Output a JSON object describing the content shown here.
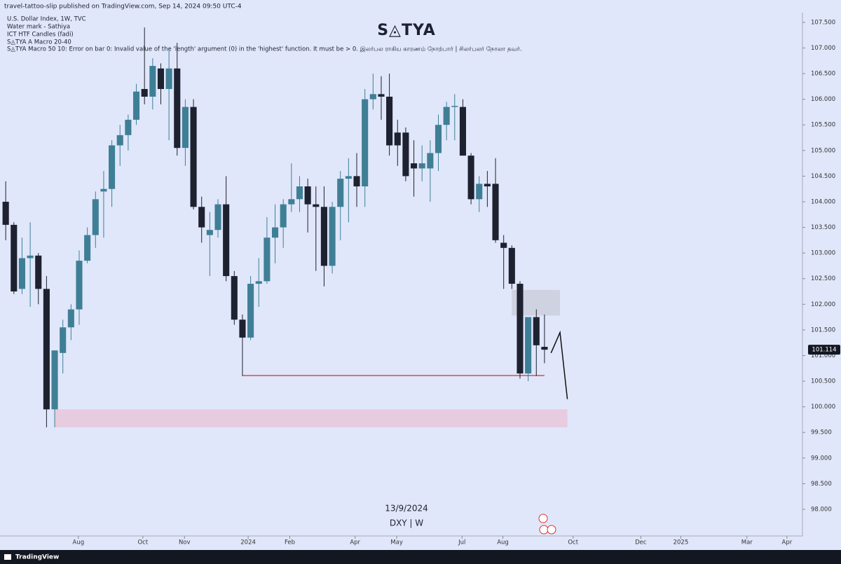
{
  "header": "travel-tattoo-slip published on TradingView.com, Sep 14, 2024 09:50 UTC-4",
  "legend": [
    "U.S. Dollar Index, 1W, TVC",
    "Water mark - Sathiya",
    "ICT HTF Candles (fadi)",
    "S◬TYA A Macro  20-40",
    "S◬TYA  Macro 50 10: Error on bar 0: Invalid value of the 'length' argument (0) in the 'highest' function. It must be > 0.    இலர்பல ராகிய காரணம் நோற்பார் | சிலர்பலர் நோலா தவர்."
  ],
  "footer": "TradingView",
  "chart_data": {
    "type": "candlestick",
    "title": "S◬TYA",
    "watermark": [
      "13/9/2024",
      "DXY | W"
    ],
    "up_color": "#3f7f96",
    "down_color": "#1e2130",
    "categories": [
      null,
      null,
      null,
      null,
      null,
      null,
      null,
      null,
      null,
      null,
      null,
      null,
      null,
      null,
      null,
      null,
      null,
      null,
      null,
      null,
      null,
      null,
      null,
      null,
      null,
      null,
      null,
      null,
      null,
      null,
      null,
      null,
      null,
      null,
      null,
      null,
      null,
      null,
      null,
      null,
      null,
      null,
      null,
      null,
      null,
      null,
      null,
      null,
      null,
      null,
      null,
      null,
      null,
      null,
      null,
      null,
      null,
      null,
      null,
      null,
      null,
      null,
      null,
      null,
      null,
      null,
      null
    ],
    "open": [
      104.0,
      103.55,
      102.3,
      102.9,
      102.95,
      102.3,
      99.95,
      101.05,
      101.55,
      101.9,
      102.85,
      103.35,
      104.2,
      104.25,
      105.1,
      105.3,
      105.6,
      106.2,
      106.05,
      106.6,
      106.2,
      106.6,
      105.05,
      105.85,
      103.9,
      103.35,
      103.45,
      103.95,
      102.55,
      101.7,
      101.35,
      102.4,
      102.45,
      103.3,
      103.5,
      103.95,
      104.05,
      104.3,
      103.95,
      103.9,
      102.75,
      103.9,
      104.45,
      104.5,
      104.3,
      106.0,
      106.1,
      106.05,
      105.35,
      105.35,
      104.75,
      104.65,
      104.65,
      104.95,
      105.5,
      105.85,
      105.85,
      104.9,
      104.05,
      104.35,
      104.35,
      103.2,
      103.1,
      102.4,
      100.65,
      101.75,
      101.17
    ],
    "high": [
      104.4,
      103.6,
      103.3,
      103.6,
      103.0,
      102.55,
      101.1,
      101.7,
      102.0,
      103.05,
      103.5,
      104.2,
      104.6,
      105.2,
      105.5,
      105.7,
      106.3,
      107.4,
      106.8,
      106.7,
      107.0,
      107.1,
      106.0,
      106.0,
      104.1,
      103.8,
      104.05,
      104.5,
      102.65,
      101.8,
      102.55,
      102.9,
      103.7,
      103.95,
      104.05,
      104.75,
      104.5,
      104.45,
      104.3,
      104.3,
      104.0,
      104.6,
      104.85,
      104.95,
      106.2,
      106.5,
      106.45,
      106.5,
      105.6,
      105.45,
      105.2,
      105.1,
      105.2,
      105.7,
      105.95,
      106.1,
      106.0,
      104.95,
      104.5,
      104.6,
      104.85,
      103.35,
      103.15,
      102.45,
      101.75,
      101.9,
      101.8
    ],
    "low": [
      103.25,
      102.2,
      102.2,
      101.95,
      102.0,
      99.6,
      99.6,
      100.65,
      101.3,
      101.6,
      102.8,
      103.1,
      103.3,
      103.9,
      104.7,
      105.0,
      105.5,
      105.9,
      105.8,
      105.9,
      105.2,
      104.9,
      104.7,
      103.85,
      103.2,
      102.55,
      103.3,
      102.45,
      101.6,
      100.6,
      101.3,
      101.95,
      102.4,
      102.8,
      103.1,
      103.8,
      103.8,
      103.4,
      102.65,
      102.35,
      102.6,
      103.25,
      103.6,
      103.9,
      103.9,
      105.8,
      105.6,
      104.9,
      104.7,
      104.4,
      104.1,
      104.4,
      104.0,
      104.6,
      105.2,
      105.2,
      104.9,
      103.95,
      103.8,
      103.9,
      103.2,
      102.3,
      102.3,
      100.55,
      100.5,
      100.6,
      100.85
    ],
    "close": [
      103.55,
      102.25,
      102.9,
      102.95,
      102.3,
      99.95,
      101.1,
      101.55,
      101.9,
      102.85,
      103.35,
      104.05,
      104.25,
      105.1,
      105.3,
      105.6,
      106.15,
      106.05,
      106.65,
      106.2,
      106.6,
      105.05,
      105.85,
      103.9,
      103.5,
      103.45,
      103.95,
      102.55,
      101.7,
      101.35,
      102.4,
      102.45,
      103.3,
      103.5,
      103.95,
      104.05,
      104.3,
      103.95,
      103.9,
      102.75,
      103.9,
      104.45,
      104.5,
      104.3,
      106.0,
      106.1,
      106.05,
      105.1,
      105.1,
      104.5,
      104.65,
      104.75,
      104.95,
      105.5,
      105.85,
      105.87,
      104.9,
      104.05,
      104.35,
      104.3,
      103.25,
      103.1,
      102.4,
      100.65,
      101.75,
      101.2,
      101.114
    ],
    "zones": [
      {
        "x": [
          6,
          68.8
        ],
        "range": [
          99.6,
          99.95
        ],
        "color": "#e7c5d8"
      },
      {
        "x": [
          62,
          67.9
        ],
        "range": [
          101.78,
          102.28
        ],
        "color": "#cbcfdc"
      }
    ],
    "level": {
      "x": [
        29,
        66
      ],
      "value": 100.61,
      "color": "#d32f2f"
    },
    "projection": {
      "x": [
        66.8,
        67.9,
        68.8
      ],
      "values": [
        101.05,
        101.45,
        100.15
      ],
      "color": "#111111"
    },
    "xlim": [
      -0.7,
      97.6
    ],
    "xticks": [
      {
        "value": 8.9,
        "label": "Aug"
      },
      {
        "value": 16.8,
        "label": "Oct"
      },
      {
        "value": 21.9,
        "label": "Nov"
      },
      {
        "value": 29.7,
        "label": "2024"
      },
      {
        "value": 34.8,
        "label": "Feb"
      },
      {
        "value": 42.8,
        "label": "Apr"
      },
      {
        "value": 47.9,
        "label": "May"
      },
      {
        "value": 55.9,
        "label": "Jul"
      },
      {
        "value": 60.9,
        "label": "Aug"
      },
      {
        "value": 69.5,
        "label": "Oct"
      },
      {
        "value": 77.8,
        "label": "Dec"
      },
      {
        "value": 82.7,
        "label": "2025"
      },
      {
        "value": 90.8,
        "label": "Mar"
      },
      {
        "value": 95.7,
        "label": "Apr"
      }
    ],
    "ylim": [
      97.48,
      107.69
    ],
    "yticks": [
      {
        "value": 98,
        "label": "98.000"
      },
      {
        "value": 98.5,
        "label": "98.500"
      },
      {
        "value": 99,
        "label": "99.000"
      },
      {
        "value": 99.5,
        "label": "99.500"
      },
      {
        "value": 100,
        "label": "100.000"
      },
      {
        "value": 100.5,
        "label": "100.500"
      },
      {
        "value": 101,
        "label": "101.000"
      },
      {
        "value": 101.5,
        "label": "101.500"
      },
      {
        "value": 102,
        "label": "102.000"
      },
      {
        "value": 102.5,
        "label": "102.500"
      },
      {
        "value": 103,
        "label": "103.000"
      },
      {
        "value": 103.5,
        "label": "103.500"
      },
      {
        "value": 104,
        "label": "104.000"
      },
      {
        "value": 104.5,
        "label": "104.500"
      },
      {
        "value": 105,
        "label": "105.000"
      },
      {
        "value": 105.5,
        "label": "105.500"
      },
      {
        "value": 106,
        "label": "106.000"
      },
      {
        "value": 106.5,
        "label": "106.500"
      },
      {
        "value": 107,
        "label": "107.000"
      },
      {
        "value": 107.5,
        "label": "107.500"
      }
    ]
  }
}
